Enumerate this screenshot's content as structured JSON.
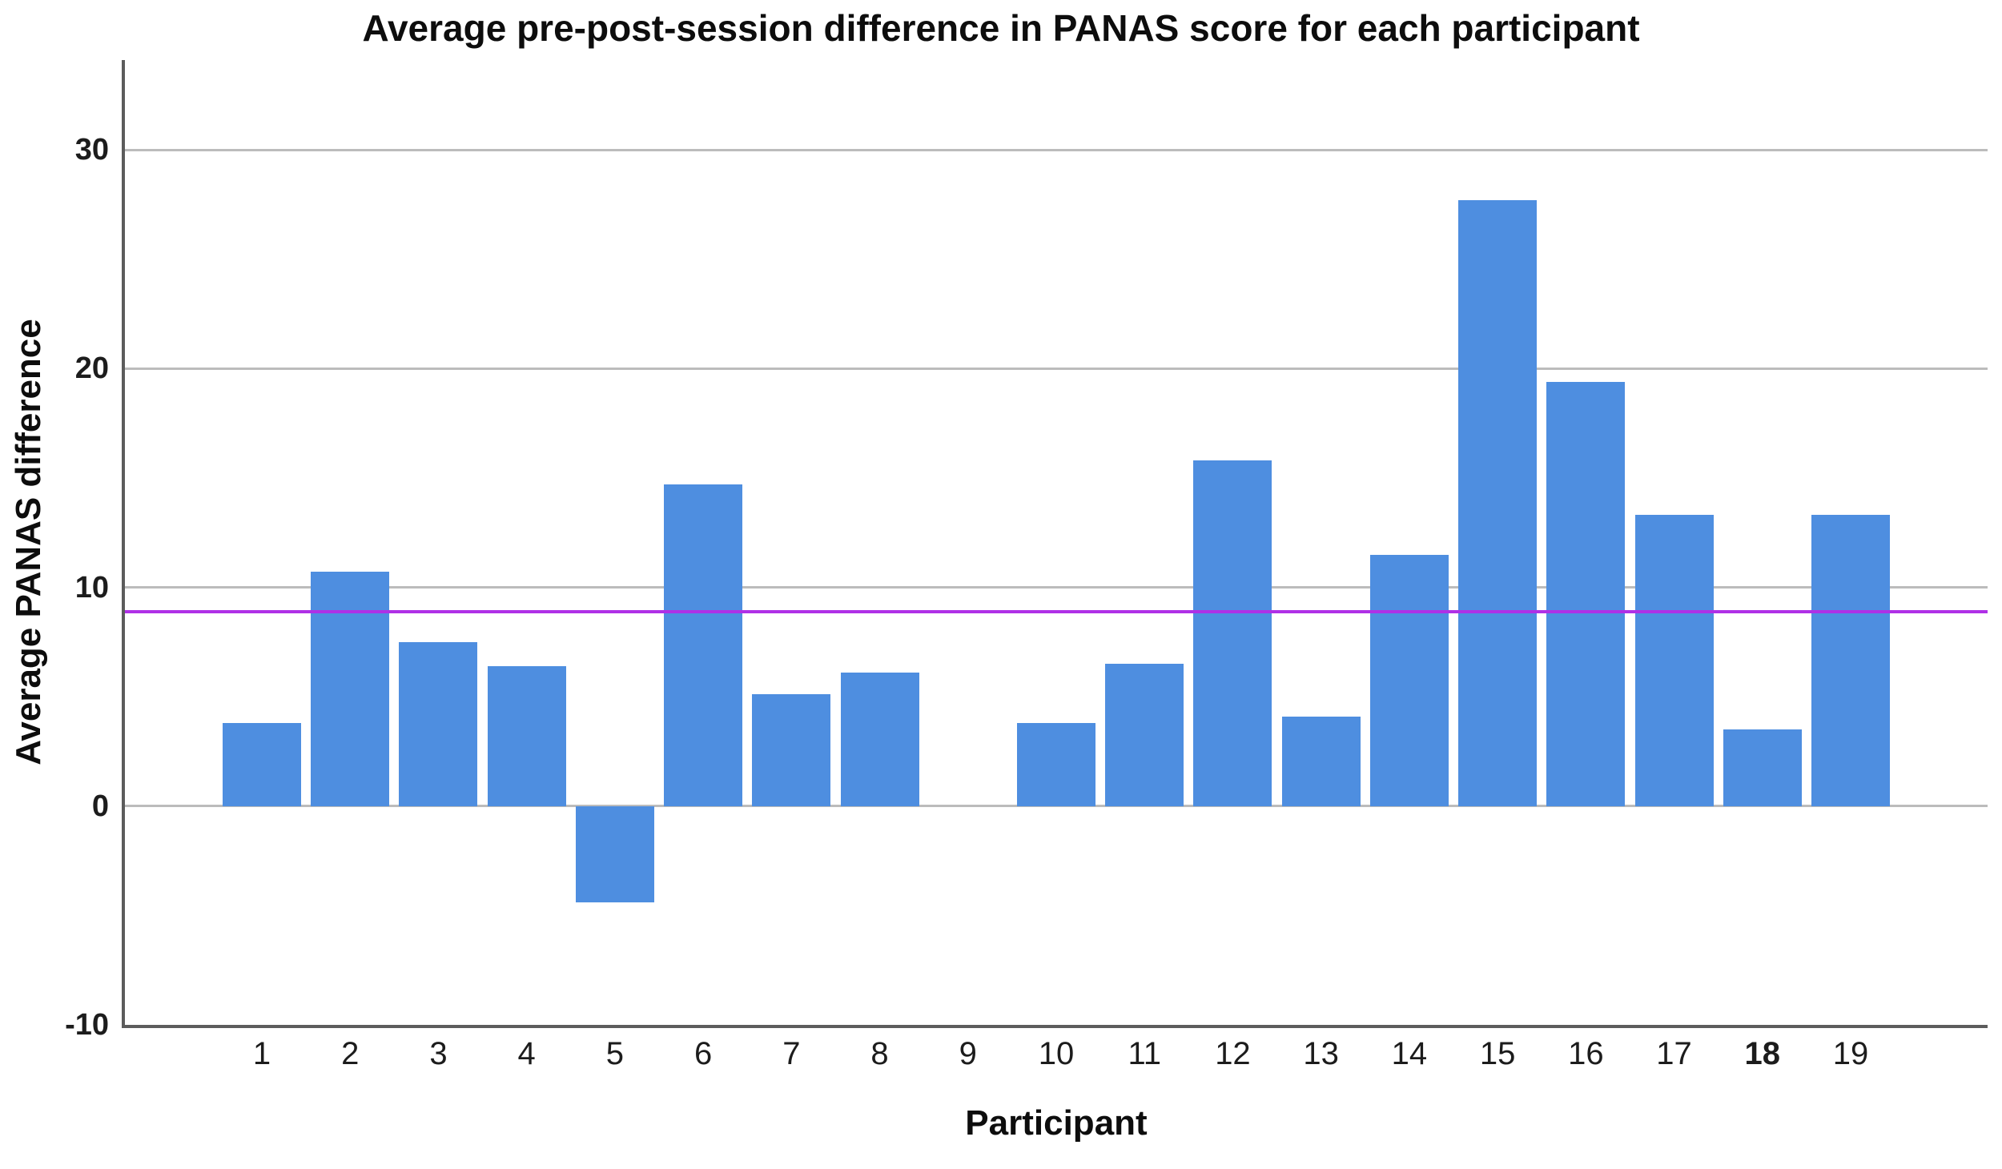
{
  "figure": {
    "title": "Average pre-post-session difference in PANAS score for each participant",
    "x_axis_title": "Participant",
    "y_axis_title": "Average PANAS difference"
  },
  "chart_data": {
    "type": "bar",
    "title": "Average pre-post-session difference in PANAS score for each participant",
    "xlabel": "Participant",
    "ylabel": "Average PANAS difference",
    "categories": [
      "1",
      "2",
      "3",
      "4",
      "5",
      "6",
      "7",
      "8",
      "9",
      "10",
      "11",
      "12",
      "13",
      "14",
      "15",
      "16",
      "17",
      "18",
      "19"
    ],
    "values": [
      3.8,
      10.7,
      7.5,
      6.4,
      -4.4,
      14.7,
      5.1,
      6.1,
      null,
      3.8,
      6.5,
      15.8,
      4.1,
      11.5,
      27.7,
      19.4,
      13.3,
      3.5,
      13.3
    ],
    "y_ticks": [
      -10,
      0,
      10,
      20,
      30
    ],
    "ylim": [
      -10,
      34.1
    ],
    "grid": true,
    "legend": "none",
    "bar_color": "#4E8EE0",
    "reference_line": {
      "value": 8.9,
      "color": "#AF30E6"
    },
    "bold_x_tick": "18"
  }
}
